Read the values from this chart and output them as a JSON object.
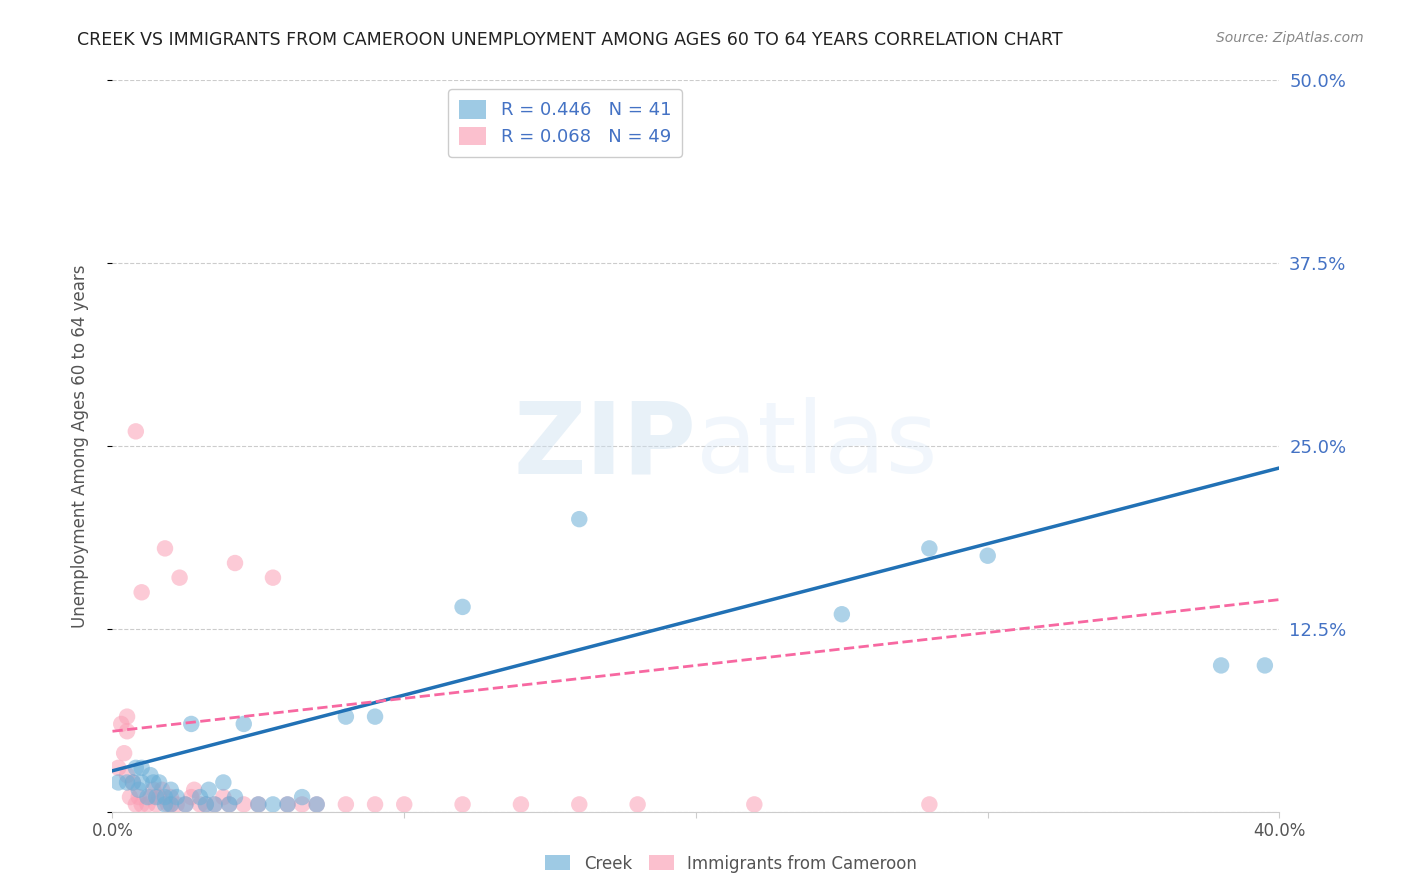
{
  "title": "CREEK VS IMMIGRANTS FROM CAMEROON UNEMPLOYMENT AMONG AGES 60 TO 64 YEARS CORRELATION CHART",
  "source": "Source: ZipAtlas.com",
  "ylabel": "Unemployment Among Ages 60 to 64 years",
  "xlim": [
    0.0,
    0.4
  ],
  "ylim": [
    0.0,
    0.5
  ],
  "xticks": [
    0.0,
    0.1,
    0.2,
    0.3,
    0.4
  ],
  "xticklabels": [
    "0.0%",
    "",
    "",
    "",
    "40.0%"
  ],
  "yticks": [
    0.0,
    0.125,
    0.25,
    0.375,
    0.5
  ],
  "yticklabels": [
    "",
    "12.5%",
    "25.0%",
    "37.5%",
    "50.0%"
  ],
  "creek_color": "#6baed6",
  "cameroon_color": "#fa9fb5",
  "creek_line_color": "#2171b5",
  "cameroon_line_color": "#f768a1",
  "creek_R": 0.446,
  "creek_N": 41,
  "cameroon_R": 0.068,
  "cameroon_N": 49,
  "watermark_zip": "ZIP",
  "watermark_atlas": "atlas",
  "legend_creek": "Creek",
  "legend_cameroon": "Immigrants from Cameroon",
  "creek_line_x": [
    0.0,
    0.4
  ],
  "creek_line_y": [
    0.028,
    0.235
  ],
  "cameroon_line_x": [
    0.0,
    0.4
  ],
  "cameroon_line_y": [
    0.055,
    0.145
  ],
  "creek_scatter_x": [
    0.002,
    0.005,
    0.007,
    0.008,
    0.009,
    0.01,
    0.01,
    0.012,
    0.013,
    0.014,
    0.015,
    0.016,
    0.018,
    0.018,
    0.02,
    0.02,
    0.022,
    0.025,
    0.027,
    0.03,
    0.032,
    0.033,
    0.035,
    0.038,
    0.04,
    0.042,
    0.045,
    0.05,
    0.055,
    0.06,
    0.065,
    0.07,
    0.08,
    0.09,
    0.12,
    0.16,
    0.25,
    0.28,
    0.3,
    0.38,
    0.395
  ],
  "creek_scatter_y": [
    0.02,
    0.02,
    0.02,
    0.03,
    0.015,
    0.02,
    0.03,
    0.01,
    0.025,
    0.02,
    0.01,
    0.02,
    0.005,
    0.01,
    0.005,
    0.015,
    0.01,
    0.005,
    0.06,
    0.01,
    0.005,
    0.015,
    0.005,
    0.02,
    0.005,
    0.01,
    0.06,
    0.005,
    0.005,
    0.005,
    0.01,
    0.005,
    0.065,
    0.065,
    0.14,
    0.2,
    0.135,
    0.18,
    0.175,
    0.1,
    0.1
  ],
  "cameroon_scatter_x": [
    0.002,
    0.003,
    0.004,
    0.005,
    0.005,
    0.005,
    0.006,
    0.007,
    0.008,
    0.008,
    0.009,
    0.01,
    0.01,
    0.012,
    0.013,
    0.014,
    0.015,
    0.016,
    0.017,
    0.018,
    0.019,
    0.02,
    0.02,
    0.022,
    0.023,
    0.025,
    0.027,
    0.028,
    0.03,
    0.032,
    0.035,
    0.038,
    0.04,
    0.042,
    0.045,
    0.05,
    0.055,
    0.06,
    0.065,
    0.07,
    0.08,
    0.09,
    0.1,
    0.12,
    0.14,
    0.16,
    0.18,
    0.22,
    0.28
  ],
  "cameroon_scatter_y": [
    0.03,
    0.06,
    0.04,
    0.025,
    0.055,
    0.065,
    0.01,
    0.02,
    0.005,
    0.26,
    0.01,
    0.005,
    0.15,
    0.005,
    0.01,
    0.015,
    0.005,
    0.01,
    0.015,
    0.18,
    0.005,
    0.005,
    0.01,
    0.005,
    0.16,
    0.005,
    0.01,
    0.015,
    0.005,
    0.005,
    0.005,
    0.01,
    0.005,
    0.17,
    0.005,
    0.005,
    0.16,
    0.005,
    0.005,
    0.005,
    0.005,
    0.005,
    0.005,
    0.005,
    0.005,
    0.005,
    0.005,
    0.005,
    0.005
  ],
  "title_color": "#222222",
  "tick_color_right": "#4472c4",
  "grid_color": "#cccccc",
  "background_color": "#ffffff"
}
